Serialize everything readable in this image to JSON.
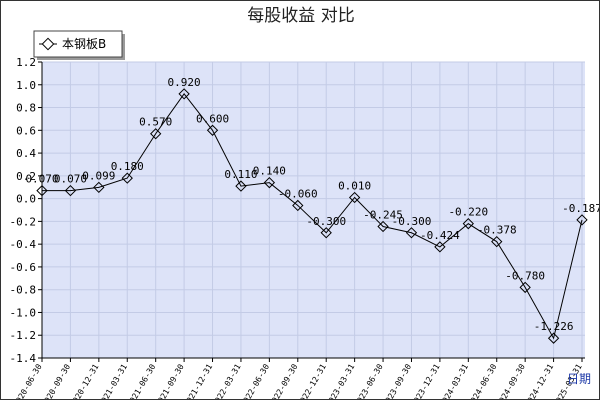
{
  "chart_data": {
    "type": "line",
    "title": "每股收益 对比",
    "xlabel": "日期",
    "ylabel": "",
    "ylim": [
      -1.4,
      1.2
    ],
    "yticks": [
      1.2,
      1.0,
      0.8,
      0.6,
      0.4,
      0.2,
      0.0,
      -0.2,
      -0.4,
      -0.6,
      -0.8,
      -1.0,
      -1.2,
      -1.4
    ],
    "grid": true,
    "legend_position": "top-left",
    "colors": {
      "line": "#000000",
      "plot_background": "#dde3f8",
      "grid": "#c3cbe6"
    },
    "categories": [
      "2020-06-30",
      "2020-09-30",
      "2020-12-31",
      "2021-03-31",
      "2021-06-30",
      "2021-09-30",
      "2021-12-31",
      "2022-03-31",
      "2022-06-30",
      "2022-09-30",
      "2022-12-31",
      "2023-03-31",
      "2023-06-30",
      "2023-09-30",
      "2023-12-31",
      "2024-03-31",
      "2024-06-30",
      "2024-09-30",
      "2024-12-31",
      "2025-03-31"
    ],
    "series": [
      {
        "name": "本钢板B",
        "values": [
          0.07,
          0.07,
          0.099,
          0.18,
          0.57,
          0.92,
          0.6,
          0.11,
          0.14,
          -0.06,
          -0.3,
          0.01,
          -0.245,
          -0.3,
          -0.424,
          -0.22,
          -0.378,
          -0.78,
          -1.226,
          -0.187
        ],
        "labels": [
          "0.070",
          "0.070",
          "0.099",
          "0.180",
          "0.570",
          "0.920",
          "0.600",
          "0.110",
          "0.140",
          "-0.060",
          "-0.300",
          "0.010",
          "-0.245",
          "-0.300",
          "-0.424",
          "-0.220",
          "-0.378",
          "-0.780",
          "-1.226",
          "-0.187"
        ]
      }
    ]
  }
}
